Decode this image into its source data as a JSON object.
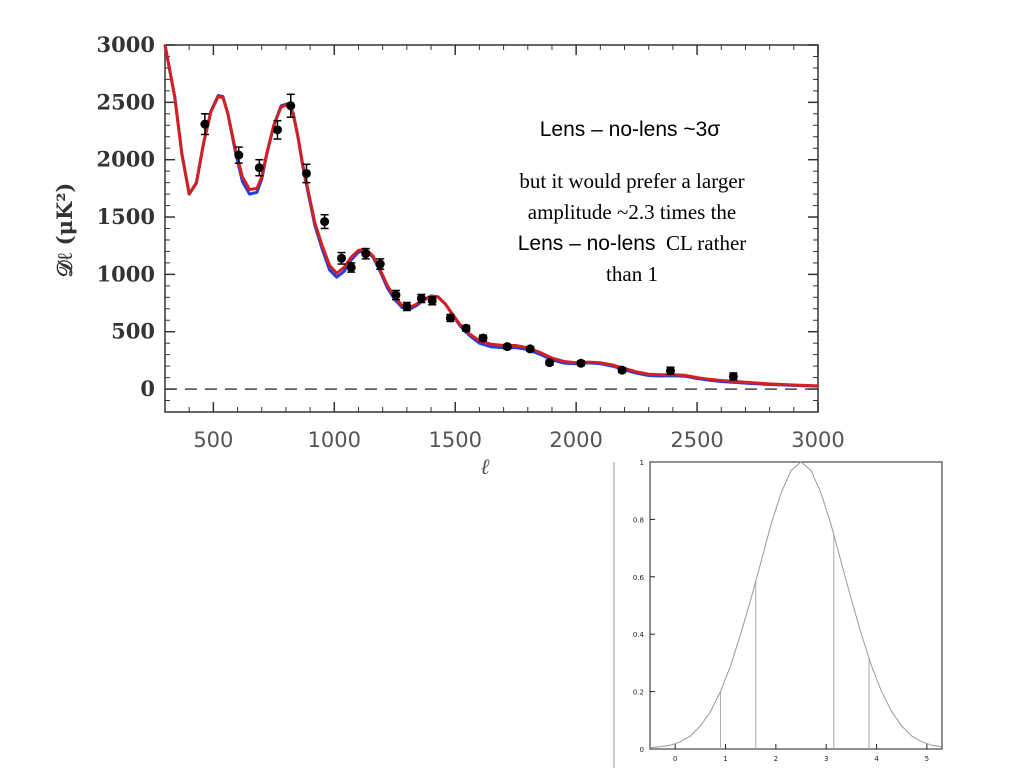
{
  "chart_data": [
    {
      "type": "line",
      "xlabel": "ℓ",
      "ylabel": "𝒟ℓ  (μK²)",
      "xlim": [
        300,
        3000
      ],
      "ylim": [
        -200,
        3000
      ],
      "x_ticks": [
        "500",
        "1000",
        "1500",
        "2000",
        "2500",
        "3000"
      ],
      "y_ticks": [
        "3000",
        "2500",
        "2000",
        "1500",
        "1000",
        "500",
        "0"
      ],
      "reference_line": {
        "y": 0,
        "style": "dashed"
      },
      "series": [
        {
          "color": "#d42020",
          "x": [
            300,
            340,
            370,
            400,
            430,
            460,
            490,
            520,
            540,
            560,
            590,
            620,
            650,
            680,
            700,
            720,
            750,
            780,
            810,
            830,
            850,
            870,
            890,
            920,
            950,
            980,
            1010,
            1040,
            1070,
            1100,
            1130,
            1160,
            1190,
            1220,
            1250,
            1280,
            1310,
            1340,
            1370,
            1400,
            1430,
            1460,
            1490,
            1520,
            1560,
            1600,
            1650,
            1700,
            1750,
            1800,
            1850,
            1900,
            1950,
            2000,
            2050,
            2100,
            2150,
            2200,
            2250,
            2300,
            2350,
            2400,
            2450,
            2500,
            2550,
            2600,
            2700,
            2800,
            2900,
            3000
          ],
          "values": [
            3000,
            2550,
            2050,
            1700,
            1800,
            2150,
            2420,
            2550,
            2540,
            2400,
            2100,
            1850,
            1740,
            1750,
            1850,
            2050,
            2300,
            2460,
            2480,
            2400,
            2200,
            1950,
            1750,
            1450,
            1250,
            1080,
            1010,
            1060,
            1150,
            1210,
            1220,
            1160,
            1040,
            900,
            800,
            730,
            710,
            740,
            780,
            810,
            800,
            740,
            650,
            560,
            480,
            420,
            390,
            380,
            380,
            360,
            320,
            270,
            240,
            230,
            235,
            230,
            210,
            180,
            150,
            130,
            125,
            125,
            120,
            100,
            85,
            75,
            60,
            45,
            35,
            28
          ]
        },
        {
          "color": "#2040e0",
          "x": [
            300,
            340,
            370,
            400,
            430,
            460,
            490,
            520,
            540,
            560,
            590,
            620,
            650,
            680,
            700,
            720,
            750,
            780,
            810,
            830,
            850,
            870,
            890,
            920,
            950,
            980,
            1010,
            1040,
            1070,
            1100,
            1130,
            1160,
            1190,
            1220,
            1250,
            1280,
            1310,
            1340,
            1370,
            1400,
            1430,
            1460,
            1490,
            1520,
            1560,
            1600,
            1650,
            1700,
            1750,
            1800,
            1850,
            1900,
            1950,
            2000,
            2050,
            2100,
            2150,
            2200,
            2250,
            2300,
            2350,
            2400,
            2450,
            2500,
            2550,
            2600,
            2700,
            2800,
            2900,
            3000
          ],
          "values": [
            3000,
            2550,
            2050,
            1700,
            1795,
            2150,
            2425,
            2560,
            2550,
            2400,
            2080,
            1810,
            1700,
            1715,
            1830,
            2040,
            2300,
            2470,
            2490,
            2405,
            2195,
            1935,
            1730,
            1425,
            1220,
            1040,
            975,
            1025,
            1125,
            1195,
            1212,
            1150,
            1025,
            880,
            780,
            712,
            695,
            728,
            775,
            812,
            804,
            740,
            645,
            552,
            465,
            400,
            368,
            360,
            362,
            344,
            304,
            254,
            226,
            220,
            228,
            222,
            200,
            168,
            138,
            118,
            114,
            116,
            112,
            92,
            77,
            66,
            52,
            40,
            32,
            26
          ]
        }
      ],
      "data_points": {
        "x": [
          465,
          605,
          690,
          765,
          820,
          885,
          960,
          1030,
          1070,
          1130,
          1190,
          1255,
          1300,
          1360,
          1405,
          1480,
          1545,
          1615,
          1715,
          1810,
          1890,
          2020,
          2190,
          2390,
          2650
        ],
        "values": [
          2310,
          2040,
          1930,
          2260,
          2470,
          1880,
          1460,
          1140,
          1060,
          1180,
          1090,
          820,
          720,
          790,
          770,
          620,
          530,
          445,
          370,
          350,
          230,
          225,
          165,
          160,
          110
        ],
        "errors": [
          90,
          70,
          70,
          80,
          100,
          80,
          60,
          50,
          40,
          45,
          45,
          40,
          35,
          35,
          35,
          30,
          25,
          25,
          20,
          20,
          20,
          20,
          20,
          30,
          30
        ]
      }
    },
    {
      "type": "line",
      "xlim": [
        -0.5,
        5.3
      ],
      "ylim": [
        0,
        1
      ],
      "x_ticks": [
        "0",
        "1",
        "2",
        "3",
        "4",
        "5"
      ],
      "y_ticks": [
        "1",
        "0.8",
        "0.6",
        "0.4",
        "0.2",
        "0"
      ],
      "series": [
        {
          "color": "#999999",
          "x": [
            -0.5,
            -0.3,
            -0.1,
            0.1,
            0.3,
            0.5,
            0.7,
            0.9,
            1.1,
            1.3,
            1.5,
            1.7,
            1.9,
            2.1,
            2.3,
            2.5,
            2.7,
            2.9,
            3.1,
            3.3,
            3.5,
            3.7,
            3.9,
            4.1,
            4.3,
            4.5,
            4.7,
            4.9,
            5.1,
            5.3
          ],
          "values": [
            0.005,
            0.008,
            0.013,
            0.025,
            0.045,
            0.08,
            0.13,
            0.2,
            0.29,
            0.4,
            0.52,
            0.65,
            0.78,
            0.89,
            0.97,
            1.0,
            0.97,
            0.89,
            0.78,
            0.65,
            0.52,
            0.4,
            0.29,
            0.2,
            0.13,
            0.08,
            0.045,
            0.025,
            0.013,
            0.008
          ]
        }
      ],
      "vertical_lines_x": [
        0.9,
        1.6,
        3.15,
        3.85
      ]
    }
  ],
  "annotations": {
    "line1": "Lens – no-lens   ~3σ",
    "line2_a": "but  it would prefer a larger",
    "line2_b": "amplitude ~2.3 times the",
    "line2_c_sans": "Lens – no-lens",
    "line2_c_serif": "  CL rather",
    "line2_d": "than 1"
  }
}
